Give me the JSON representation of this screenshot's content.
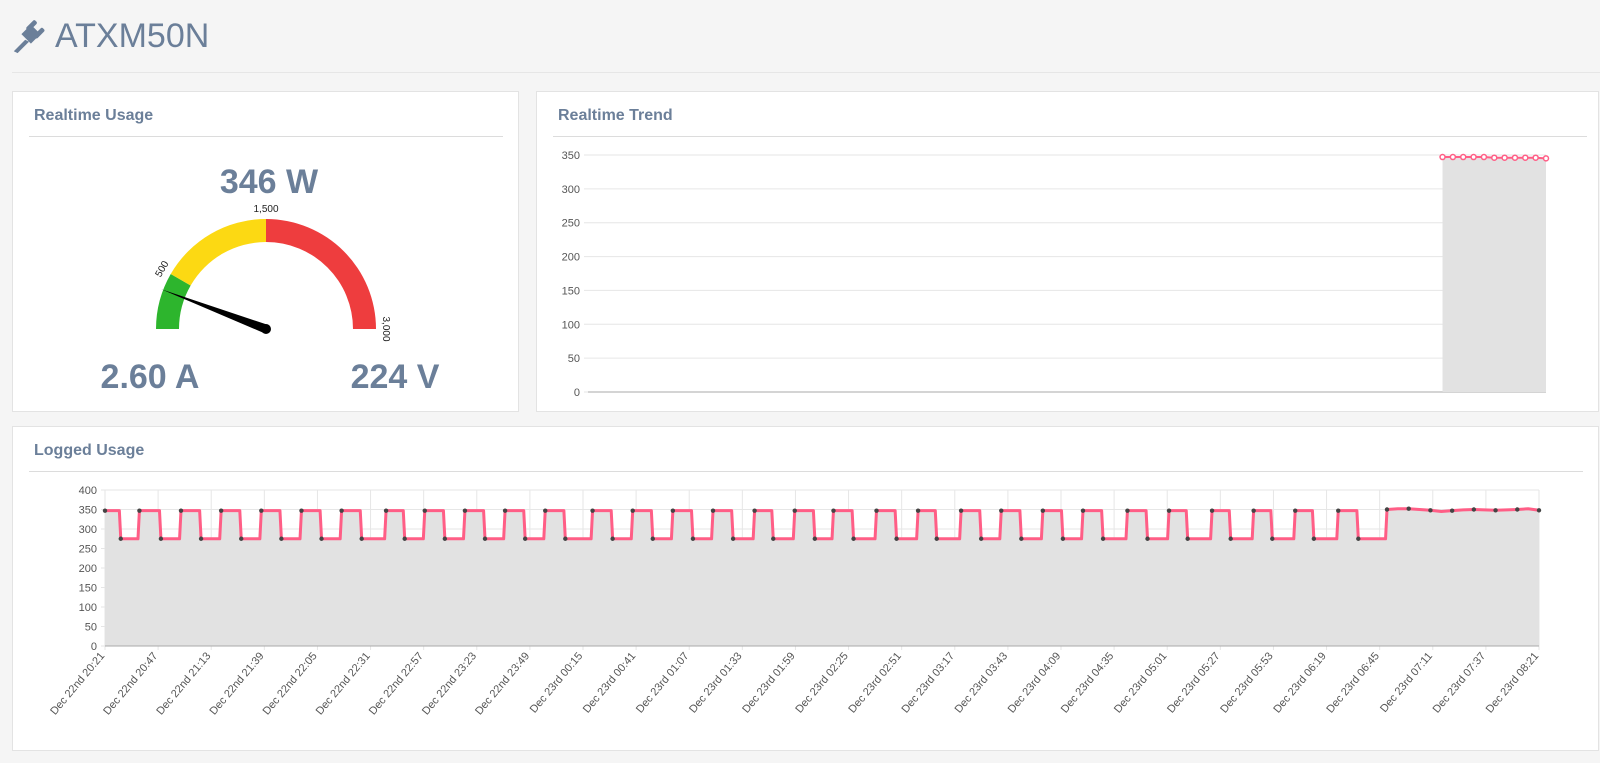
{
  "header": {
    "title": "ATXM50N",
    "icon": "plug-icon"
  },
  "realtime_usage": {
    "title": "Realtime Usage",
    "power": "346 W",
    "current": "2.60 A",
    "voltage": "224 V",
    "gauge": {
      "min": 0,
      "max": 3000,
      "value": 346,
      "tick_labels": [
        "500",
        "1,500",
        "3,000"
      ],
      "bands": [
        {
          "from": 0,
          "to": 500,
          "color": "#2db52d"
        },
        {
          "from": 500,
          "to": 1500,
          "color": "#fcd913"
        },
        {
          "from": 1500,
          "to": 3000,
          "color": "#ee3d3e"
        }
      ]
    }
  },
  "realtime_trend": {
    "title": "Realtime Trend"
  },
  "logged_usage": {
    "title": "Logged Usage"
  },
  "colors": {
    "series": "#ff5e86",
    "area": "#e2e2e2",
    "text": "#6b7f99"
  },
  "chart_data": [
    {
      "type": "area",
      "name": "realtime-trend",
      "ylim": [
        0,
        350
      ],
      "yticks": [
        0,
        50,
        100,
        150,
        200,
        250,
        300,
        350
      ],
      "x_range": [
        0,
        100
      ],
      "data_start": 89.2,
      "values": [
        347,
        347,
        347,
        347,
        347,
        346,
        346,
        346,
        346,
        346,
        345
      ],
      "grid": true
    },
    {
      "type": "area",
      "name": "logged-usage",
      "ylim": [
        0,
        400
      ],
      "yticks": [
        0,
        50,
        100,
        150,
        200,
        250,
        300,
        350,
        400
      ],
      "categories": [
        "Dec 22nd 20:21",
        "Dec 22nd 20:47",
        "Dec 22nd 21:13",
        "Dec 22nd 21:39",
        "Dec 22nd 22:05",
        "Dec 22nd 22:31",
        "Dec 22nd 22:57",
        "Dec 22nd 23:23",
        "Dec 22nd 23:49",
        "Dec 23rd 00:15",
        "Dec 23rd 00:41",
        "Dec 23rd 01:07",
        "Dec 23rd 01:33",
        "Dec 23rd 01:59",
        "Dec 23rd 02:25",
        "Dec 23rd 02:51",
        "Dec 23rd 03:17",
        "Dec 23rd 03:43",
        "Dec 23rd 04:09",
        "Dec 23rd 04:35",
        "Dec 23rd 05:01",
        "Dec 23rd 05:27",
        "Dec 23rd 05:53",
        "Dec 23rd 06:19",
        "Dec 23rd 06:45",
        "Dec 23rd 07:11",
        "Dec 23rd 07:37",
        "Dec 23rd 08:21"
      ],
      "high_value": 347,
      "low_value": 275,
      "high_intervals": [
        [
          0,
          1.0
        ],
        [
          2.4,
          3.8
        ],
        [
          5.3,
          6.6
        ],
        [
          8.1,
          9.4
        ],
        [
          10.9,
          12.2
        ],
        [
          13.7,
          15.0
        ],
        [
          16.5,
          17.8
        ],
        [
          19.6,
          20.8
        ],
        [
          22.3,
          23.6
        ],
        [
          25.1,
          26.4
        ],
        [
          27.9,
          29.2
        ],
        [
          30.7,
          32.0
        ],
        [
          34.0,
          35.3
        ],
        [
          36.8,
          38.1
        ],
        [
          39.6,
          40.9
        ],
        [
          42.4,
          43.7
        ],
        [
          45.3,
          46.5
        ],
        [
          48.1,
          49.4
        ],
        [
          50.8,
          52.1
        ],
        [
          53.8,
          55.1
        ],
        [
          56.7,
          57.9
        ],
        [
          59.7,
          61.0
        ],
        [
          62.5,
          63.8
        ],
        [
          65.4,
          66.7
        ],
        [
          68.2,
          69.5
        ],
        [
          71.3,
          72.6
        ],
        [
          74.2,
          75.4
        ],
        [
          77.2,
          78.4
        ],
        [
          80.1,
          81.3
        ],
        [
          83.0,
          84.2
        ],
        [
          86.0,
          87.3
        ],
        [
          89.4,
          100
        ]
      ],
      "tail_values": [
        350,
        352,
        352,
        350,
        348,
        345,
        347,
        349,
        350,
        349,
        348,
        349,
        350,
        352,
        348
      ],
      "grid": true
    }
  ]
}
